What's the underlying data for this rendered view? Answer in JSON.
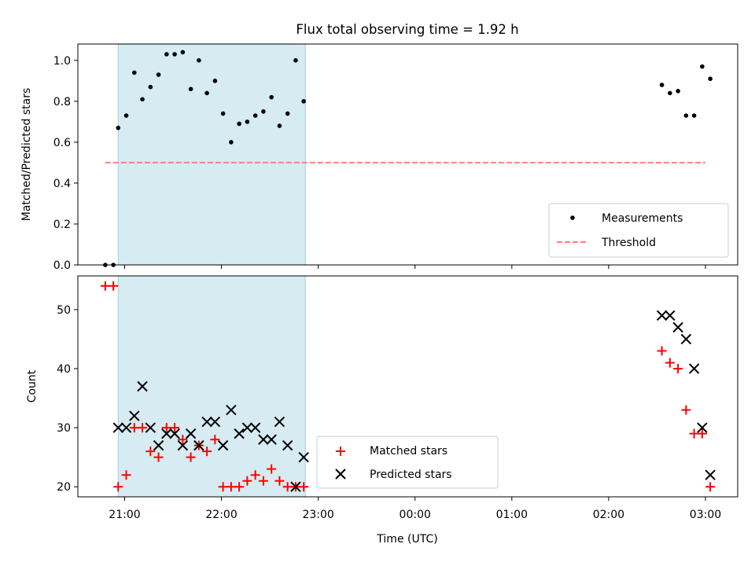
{
  "chart_data": [
    {
      "type": "scatter",
      "title": "Flux total observing time = 1.92 h",
      "xlabel": "",
      "ylabel": "Matched/Predicted stars",
      "ylim": [
        0.0,
        1.08
      ],
      "yticks": [
        "0.0",
        "0.2",
        "0.4",
        "0.6",
        "0.8",
        "1.0"
      ],
      "shaded_interval": [
        "20:56",
        "22:52"
      ],
      "threshold": 0.5,
      "threshold_range": [
        "20:48",
        "03:00"
      ],
      "legend_position": "lower right",
      "series": [
        {
          "name": "Measurements",
          "marker": "dot",
          "color": "#000000",
          "x": [
            "20:48",
            "20:53",
            "20:56",
            "21:01",
            "21:06",
            "21:11",
            "21:16",
            "21:21",
            "21:26",
            "21:31",
            "21:36",
            "21:41",
            "21:46",
            "21:51",
            "21:56",
            "22:01",
            "22:06",
            "22:11",
            "22:16",
            "22:21",
            "22:26",
            "22:31",
            "22:36",
            "22:41",
            "22:46",
            "22:51",
            "02:33",
            "02:38",
            "02:43",
            "02:48",
            "02:53",
            "02:58",
            "03:03"
          ],
          "y": [
            0.0,
            0.0,
            0.67,
            0.73,
            0.94,
            0.81,
            0.87,
            0.93,
            1.03,
            1.03,
            1.04,
            0.86,
            1.0,
            0.84,
            0.9,
            0.74,
            0.6,
            0.69,
            0.7,
            0.73,
            0.75,
            0.82,
            0.68,
            0.74,
            1.0,
            0.8,
            0.88,
            0.84,
            0.85,
            0.73,
            0.73,
            0.97,
            0.91
          ]
        },
        {
          "name": "Threshold",
          "marker": "dashed-line",
          "color": "#ff7f7f",
          "x": [
            "20:48",
            "03:00"
          ],
          "y": [
            0.5,
            0.5
          ]
        }
      ]
    },
    {
      "type": "scatter",
      "title": "",
      "xlabel": "Time (UTC)",
      "ylabel": "Count",
      "ylim": [
        18.3,
        55.7
      ],
      "yticks": [
        "20",
        "30",
        "40",
        "50"
      ],
      "xticks": [
        "21:00",
        "22:00",
        "23:00",
        "00:00",
        "01:00",
        "02:00",
        "03:00"
      ],
      "shaded_interval": [
        "20:56",
        "22:52"
      ],
      "legend_position": "lower center",
      "series": [
        {
          "name": "Matched stars",
          "marker": "plus",
          "color": "#ff0000",
          "x": [
            "20:48",
            "20:53",
            "20:56",
            "21:01",
            "21:06",
            "21:11",
            "21:16",
            "21:21",
            "21:26",
            "21:31",
            "21:36",
            "21:41",
            "21:46",
            "21:51",
            "21:56",
            "22:01",
            "22:06",
            "22:11",
            "22:16",
            "22:21",
            "22:26",
            "22:31",
            "22:36",
            "22:41",
            "22:46",
            "22:51",
            "02:33",
            "02:38",
            "02:43",
            "02:48",
            "02:53",
            "02:58",
            "03:03"
          ],
          "y": [
            54,
            54,
            20,
            22,
            30,
            30,
            26,
            25,
            30,
            30,
            28,
            25,
            27,
            26,
            28,
            20,
            20,
            20,
            21,
            22,
            21,
            23,
            21,
            20,
            20,
            20,
            43,
            41,
            40,
            33,
            29,
            29,
            20
          ]
        },
        {
          "name": "Predicted stars",
          "marker": "x",
          "color": "#000000",
          "x": [
            "20:56",
            "21:01",
            "21:06",
            "21:11",
            "21:16",
            "21:21",
            "21:26",
            "21:31",
            "21:36",
            "21:41",
            "21:46",
            "21:51",
            "21:56",
            "22:01",
            "22:06",
            "22:11",
            "22:16",
            "22:21",
            "22:26",
            "22:31",
            "22:36",
            "22:41",
            "22:46",
            "22:51",
            "02:33",
            "02:38",
            "02:43",
            "02:48",
            "02:53",
            "02:58",
            "03:03"
          ],
          "y": [
            30,
            30,
            32,
            37,
            30,
            27,
            29,
            29,
            27,
            29,
            27,
            31,
            31,
            27,
            33,
            29,
            30,
            30,
            28,
            28,
            31,
            27,
            20,
            25,
            49,
            49,
            47,
            45,
            40,
            30,
            22
          ]
        }
      ]
    }
  ]
}
